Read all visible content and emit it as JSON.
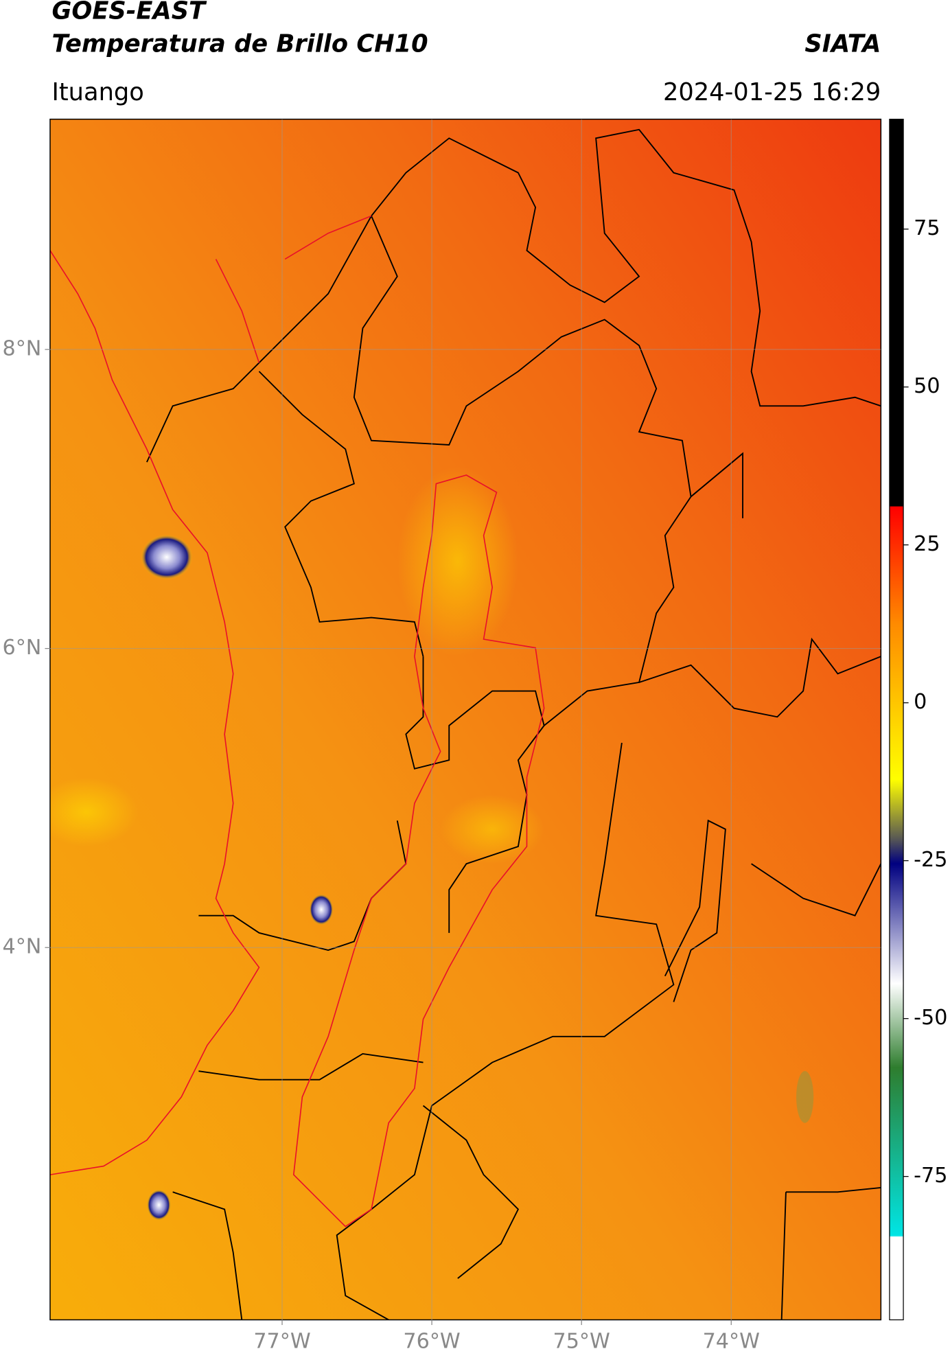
{
  "chart_data": {
    "type": "map",
    "title": "GOES-EAST",
    "subtitle": "Temperatura de Brillo CH10",
    "brand": "SIATA",
    "location": "Ituango",
    "datetime": "2024-01-25 16:29",
    "xlim": [
      -78.55,
      -73.0
    ],
    "ylim": [
      1.51,
      9.54
    ],
    "xticks": [
      {
        "value": -77,
        "label": "77°W"
      },
      {
        "value": -76,
        "label": "76°W"
      },
      {
        "value": -75,
        "label": "75°W"
      },
      {
        "value": -74,
        "label": "74°W"
      }
    ],
    "yticks": [
      {
        "value": 4,
        "label": "4°N"
      },
      {
        "value": 6,
        "label": "6°N"
      },
      {
        "value": 8,
        "label": "8°N"
      }
    ],
    "grid": true,
    "clim": [
      -97.7,
      92.4
    ],
    "cticks": [
      -75,
      -50,
      -25,
      0,
      25,
      50,
      75
    ]
  }
}
